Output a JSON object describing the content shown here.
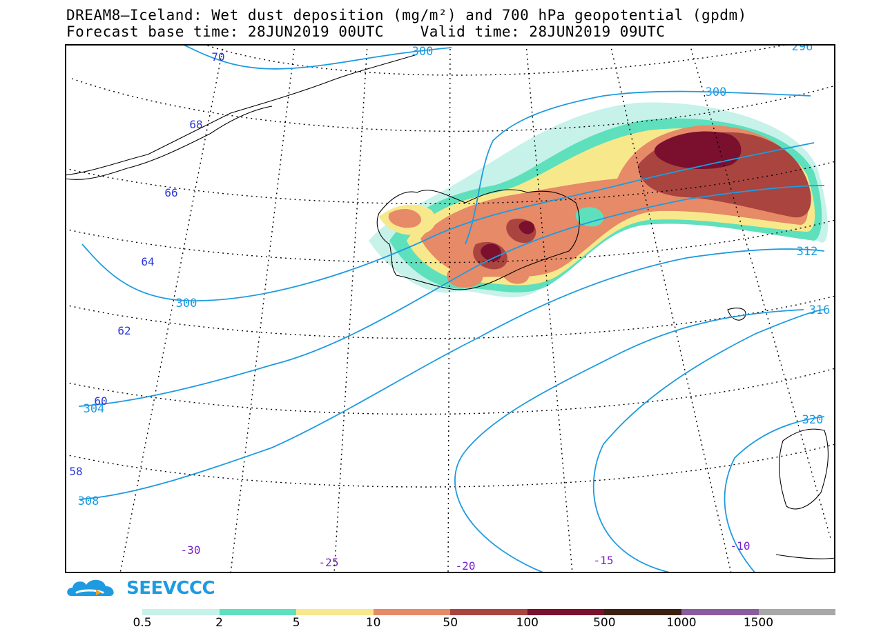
{
  "title_line1": "DREAM8–Iceland: Wet dust deposition (mg/m²) and 700 hPa geopotential (gpdm)",
  "title_line2": "Forecast base time: 28JUN2019 00UTC    Valid time: 28JUN2019 09UTC",
  "colors": {
    "contour": "#1e9be0",
    "lat_label": "#2a39d8",
    "lon_label": "#7a1fd0",
    "bins": [
      "#c6f2ea",
      "#5ee0bd",
      "#f8e88c",
      "#e68a67",
      "#a9443f",
      "#7a0f2e",
      "#3d2014",
      "#8a5c9e",
      "#a8a8a8"
    ]
  },
  "contour_labels": [
    "300",
    "300",
    "296",
    "300",
    "312",
    "316",
    "320",
    "304",
    "308"
  ],
  "lat_labels": [
    "70",
    "68",
    "66",
    "64",
    "62",
    "60",
    "58"
  ],
  "lon_labels": [
    "-30",
    "-25",
    "-20",
    "-15",
    "-10"
  ],
  "colorbar": {
    "labels": [
      "0.5",
      "2",
      "5",
      "10",
      "50",
      "100",
      "500",
      "1000",
      "1500"
    ]
  },
  "logo_text": "SEEVCCC"
}
